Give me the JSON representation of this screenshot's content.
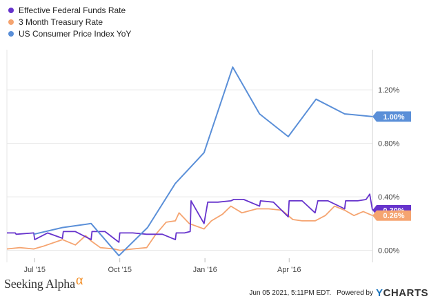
{
  "chart_data": {
    "type": "line",
    "title": "",
    "xlabel": "",
    "ylabel": "",
    "x_tick_labels": [
      "Jul '15",
      "Oct '15",
      "Jan '16",
      "Apr '16"
    ],
    "x_tick_dates": [
      "2015-07-01",
      "2015-10-01",
      "2016-01-01",
      "2016-04-01"
    ],
    "xlim": [
      "2015-06-01",
      "2016-06-30"
    ],
    "y_tick_labels": [
      "0.00%",
      "0.40%",
      "0.80%",
      "1.20%"
    ],
    "y_tick_values": [
      0,
      0.4,
      0.8,
      1.2
    ],
    "ylim": [
      -0.09,
      1.5
    ],
    "grid": "horizontal",
    "legend_position": "top-left",
    "series": [
      {
        "name": "Effective Federal Funds Rate",
        "color": "#6633cc",
        "end_label": "0.30%",
        "x": [
          "2015-06-01",
          "2015-06-10",
          "2015-06-11",
          "2015-06-30",
          "2015-07-01",
          "2015-07-15",
          "2015-07-31",
          "2015-08-01",
          "2015-08-14",
          "2015-08-31",
          "2015-09-01",
          "2015-09-15",
          "2015-09-30",
          "2015-10-01",
          "2015-10-15",
          "2015-10-30",
          "2015-11-02",
          "2015-11-16",
          "2015-11-30",
          "2015-12-01",
          "2015-12-10",
          "2015-12-16",
          "2015-12-17",
          "2015-12-31",
          "2016-01-04",
          "2016-01-15",
          "2016-01-29",
          "2016-02-01",
          "2016-02-12",
          "2016-02-29",
          "2016-03-01",
          "2016-03-15",
          "2016-03-31",
          "2016-04-01",
          "2016-04-15",
          "2016-04-29",
          "2016-05-02",
          "2016-05-13",
          "2016-05-31",
          "2016-06-01",
          "2016-06-14",
          "2016-06-23",
          "2016-06-27",
          "2016-06-30"
        ],
        "y": [
          0.13,
          0.13,
          0.12,
          0.13,
          0.08,
          0.13,
          0.09,
          0.14,
          0.14,
          0.08,
          0.14,
          0.14,
          0.06,
          0.13,
          0.13,
          0.12,
          0.12,
          0.12,
          0.08,
          0.13,
          0.13,
          0.14,
          0.37,
          0.2,
          0.36,
          0.36,
          0.37,
          0.38,
          0.38,
          0.33,
          0.37,
          0.36,
          0.25,
          0.37,
          0.37,
          0.28,
          0.37,
          0.37,
          0.31,
          0.37,
          0.37,
          0.38,
          0.42,
          0.3
        ]
      },
      {
        "name": "3 Month Treasury Rate",
        "color": "#f5a470",
        "end_label": "0.26%",
        "x": [
          "2015-06-01",
          "2015-06-15",
          "2015-06-30",
          "2015-07-10",
          "2015-07-31",
          "2015-08-14",
          "2015-08-25",
          "2015-08-31",
          "2015-09-10",
          "2015-09-25",
          "2015-10-01",
          "2015-10-15",
          "2015-10-30",
          "2015-11-09",
          "2015-11-20",
          "2015-11-30",
          "2015-12-04",
          "2015-12-15",
          "2015-12-31",
          "2016-01-08",
          "2016-01-20",
          "2016-01-29",
          "2016-02-10",
          "2016-02-26",
          "2016-03-10",
          "2016-03-24",
          "2016-04-05",
          "2016-04-15",
          "2016-04-29",
          "2016-05-10",
          "2016-05-20",
          "2016-05-31",
          "2016-06-10",
          "2016-06-20",
          "2016-06-30"
        ],
        "y": [
          0.01,
          0.02,
          0.01,
          0.03,
          0.08,
          0.04,
          0.11,
          0.07,
          0.02,
          0.01,
          0.0,
          0.01,
          0.02,
          0.12,
          0.21,
          0.22,
          0.28,
          0.2,
          0.16,
          0.22,
          0.27,
          0.33,
          0.28,
          0.31,
          0.31,
          0.3,
          0.23,
          0.22,
          0.22,
          0.26,
          0.33,
          0.3,
          0.26,
          0.29,
          0.26
        ]
      },
      {
        "name": "US Consumer Price Index YoY",
        "color": "#5a8fd8",
        "end_label": "1.00%",
        "x": [
          "2015-06-30",
          "2015-07-31",
          "2015-08-31",
          "2015-09-30",
          "2015-10-31",
          "2015-11-30",
          "2015-12-31",
          "2016-01-31",
          "2016-02-29",
          "2016-03-31",
          "2016-04-30",
          "2016-05-31",
          "2016-06-30"
        ],
        "y": [
          0.12,
          0.17,
          0.2,
          -0.04,
          0.17,
          0.5,
          0.73,
          1.37,
          1.02,
          0.85,
          1.13,
          1.02,
          1.0
        ]
      }
    ]
  },
  "footer": {
    "brand_left": "Seeking Alpha",
    "brand_left_symbol": "α",
    "timestamp": "Jun 05 2021, 5:11PM EDT.",
    "powered_by": "Powered by",
    "brand_right_y": "Y",
    "brand_right_rest": "CHARTS"
  }
}
